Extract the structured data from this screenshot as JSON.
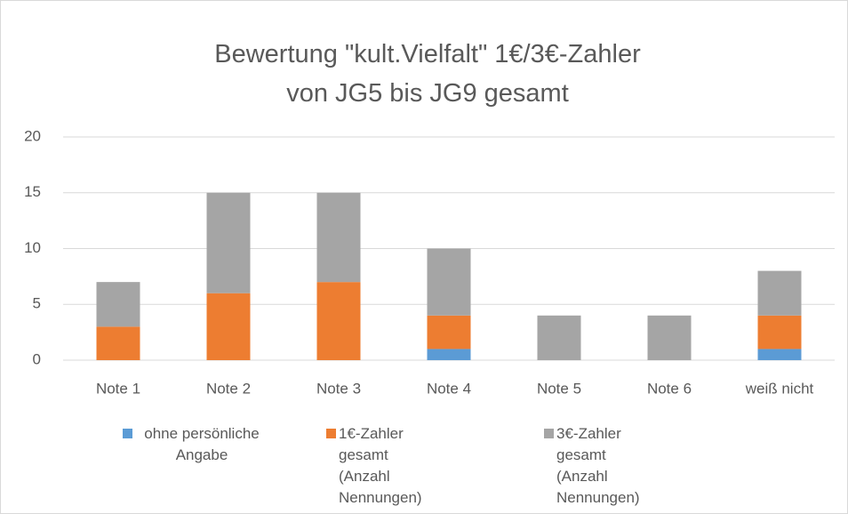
{
  "chart_data": {
    "type": "stacked_bar",
    "title": "Bewertung \"kult.Vielfalt\" 1€/3€-Zahler von JG5 bis JG9 gesamt",
    "categories": [
      "Note 1",
      "Note 2",
      "Note 3",
      "Note 4",
      "Note 5",
      "Note 6",
      "weiß nicht"
    ],
    "series": [
      {
        "name": "ohne persönliche Angabe",
        "color": "#5b9bd5",
        "values": [
          0,
          0,
          0,
          1,
          0,
          0,
          1
        ]
      },
      {
        "name": "1€-Zahler gesamt (Anzahl Nennungen)",
        "color": "#ed7d31",
        "values": [
          3,
          6,
          7,
          3,
          0,
          0,
          3
        ]
      },
      {
        "name": "3€-Zahler gesamt (Anzahl Nennungen)",
        "color": "#a5a5a5",
        "values": [
          4,
          9,
          8,
          6,
          4,
          4,
          4
        ]
      }
    ],
    "ylim": [
      0,
      20
    ],
    "yticks": [
      0,
      5,
      10,
      15,
      20
    ],
    "grid": true,
    "legend": "bottom"
  }
}
